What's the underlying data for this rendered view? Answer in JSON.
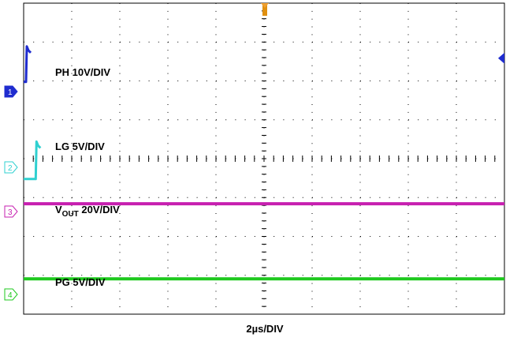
{
  "chart_data": {
    "type": "line",
    "title": "",
    "xlabel": "2µs/DIV",
    "grid": true,
    "divisions": {
      "x": 10,
      "y": 8
    },
    "time_per_div_us": 2,
    "switching_period_div": 2.5,
    "series": [
      {
        "name": "PH 10V/DIV",
        "channel": "1",
        "color": "#1f2ccf",
        "high_div": 1.0,
        "low_div": 0.25,
        "high_fraction": 0.4,
        "first_rise_div": 0.05
      },
      {
        "name": "LG 5V/DIV",
        "channel": "2",
        "color": "#2fd0d0",
        "high_div": 0.5,
        "low_div": -0.3,
        "high_fraction": 0.6,
        "first_rise_div": 0.25
      },
      {
        "name_prefix": "V",
        "name_sub": "OUT",
        "name_suffix": " 20V/DIV",
        "channel": "3",
        "color": "#c71fb0",
        "level_div": 0.2
      },
      {
        "name": "PG 5V/DIV",
        "channel": "4",
        "color": "#1ec91e",
        "level_div": 0.4
      }
    ]
  }
}
